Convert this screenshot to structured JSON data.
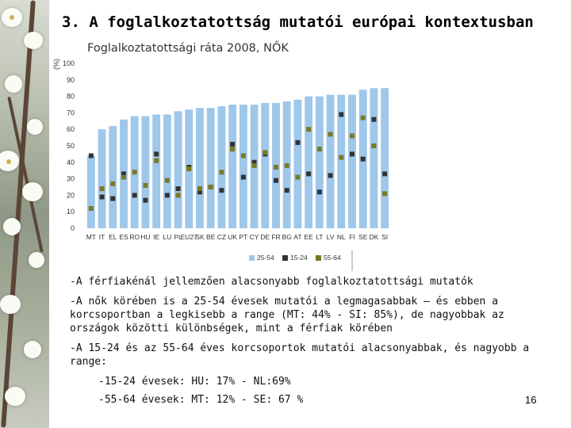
{
  "title": "3. A foglalkoztatottság mutatói európai kontextusban",
  "chart_data": {
    "type": "bar",
    "title": "Foglalkoztatottsági ráta 2008, NŐK",
    "ylabel": "(%)",
    "ylim": [
      0,
      100
    ],
    "yticks": [
      0,
      10,
      20,
      30,
      40,
      50,
      60,
      70,
      80,
      90,
      100
    ],
    "categories": [
      "MT",
      "IT",
      "EL",
      "ES",
      "RO",
      "HU",
      "IE",
      "LU",
      "PL",
      "EU27",
      "SK",
      "BE",
      "CZ",
      "UK",
      "PT",
      "CY",
      "DE",
      "FR",
      "BG",
      "AT",
      "EE",
      "LT",
      "LV",
      "NL",
      "FI",
      "SE",
      "DK",
      "SI"
    ],
    "series": [
      {
        "name": "25-54",
        "kind": "bar",
        "color": "#9fc7ea",
        "values": [
          44,
          60,
          62,
          66,
          68,
          68,
          69,
          69,
          71,
          72,
          73,
          73,
          74,
          75,
          75,
          75,
          76,
          76,
          77,
          78,
          80,
          80,
          81,
          81,
          81,
          84,
          85,
          85
        ]
      },
      {
        "name": "15-24",
        "kind": "marker",
        "color": "#333333",
        "values": [
          44,
          19,
          18,
          33,
          20,
          17,
          45,
          20,
          24,
          37,
          22,
          25,
          23,
          51,
          31,
          40,
          45,
          29,
          23,
          52,
          33,
          22,
          32,
          69,
          45,
          42,
          66,
          33
        ]
      },
      {
        "name": "55-64",
        "kind": "marker",
        "color": "#7a7a20",
        "values": [
          12,
          24,
          27,
          31,
          34,
          26,
          41,
          29,
          20,
          36,
          24,
          25,
          34,
          48,
          44,
          38,
          46,
          37,
          38,
          31,
          60,
          48,
          57,
          43,
          56,
          67,
          50,
          21
        ]
      }
    ]
  },
  "text": {
    "p1": "-A férfiakénál jellemzően alacsonyabb foglalkoztatottsági mutatók",
    "p2": "-A nők körében is a 25-54 évesek mutatói a legmagasabbak – és ebben a korcsoportban a legkisebb a range (MT: 44% - SI: 85%), de nagyobbak az országok közötti különbségek, mint a férfiak körében",
    "p3": "-A 15-24 és az 55-64 éves korcsoportok mutatói alacsonyabbak, és nagyobb a range:",
    "p4": "-15-24 évesek: HU: 17% - NL:69%",
    "p5": "-55-64 évesek: MT: 12% - SE: 67 %"
  },
  "page_number": "16"
}
